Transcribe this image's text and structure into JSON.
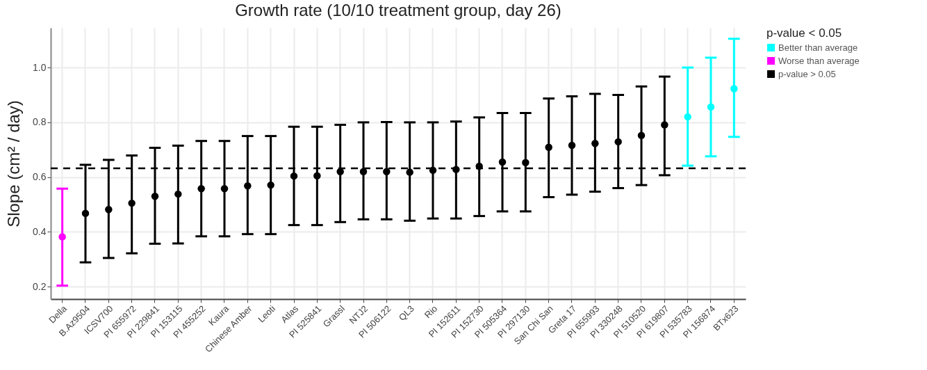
{
  "chart_data": {
    "type": "scatter",
    "title": "Growth rate (10/10 treatment group, day 26)",
    "ylabel": "Slope (cm² / day)",
    "legend_title": "p-value < 0.05",
    "categories": [
      "Della",
      "B.Az9504",
      "ICSV700",
      "PI 655972",
      "PI 229841",
      "PI 153115",
      "PI 455252",
      "Kaura",
      "Chinese Amber",
      "Leoti",
      "Atlas",
      "PI 525841",
      "Grassl",
      "NTJ2",
      "PI 506122",
      "QL3",
      "Rio",
      "PI 152611",
      "PI 152730",
      "PI 505364",
      "PI 297130",
      "San Chi San",
      "Greta 17",
      "PI 655993",
      "PI 330248",
      "PI 510520",
      "PI 619807",
      "PI 535783",
      "PI 156874",
      "BTx623"
    ],
    "series": [
      {
        "name": "Better than average",
        "color": "#00ffff",
        "values": [
          null,
          null,
          null,
          null,
          null,
          null,
          null,
          null,
          null,
          null,
          null,
          null,
          null,
          null,
          null,
          null,
          null,
          null,
          null,
          null,
          null,
          null,
          null,
          null,
          null,
          null,
          null,
          0.82,
          0.856,
          0.923
        ],
        "errors": [
          null,
          null,
          null,
          null,
          null,
          null,
          null,
          null,
          null,
          null,
          null,
          null,
          null,
          null,
          null,
          null,
          null,
          null,
          null,
          null,
          null,
          null,
          null,
          null,
          null,
          null,
          null,
          [
            0.642,
            1.0
          ],
          [
            0.676,
            1.036
          ],
          [
            0.747,
            1.105
          ]
        ]
      },
      {
        "name": "Worse than average",
        "color": "#ff00ff",
        "values": [
          0.382,
          null,
          null,
          null,
          null,
          null,
          null,
          null,
          null,
          null,
          null,
          null,
          null,
          null,
          null,
          null,
          null,
          null,
          null,
          null,
          null,
          null,
          null,
          null,
          null,
          null,
          null,
          null,
          null,
          null
        ],
        "errors": [
          [
            0.204,
            0.558
          ],
          null,
          null,
          null,
          null,
          null,
          null,
          null,
          null,
          null,
          null,
          null,
          null,
          null,
          null,
          null,
          null,
          null,
          null,
          null,
          null,
          null,
          null,
          null,
          null,
          null,
          null,
          null,
          null,
          null
        ]
      },
      {
        "name": "p-value > 0.05",
        "color": "#000000",
        "values": [
          null,
          0.468,
          0.482,
          0.505,
          0.53,
          0.538,
          0.558,
          0.558,
          0.568,
          0.571,
          0.604,
          0.605,
          0.62,
          0.62,
          0.62,
          0.618,
          0.625,
          0.628,
          0.64,
          0.655,
          0.653,
          0.709,
          0.716,
          0.723,
          0.729,
          0.752,
          0.791,
          null,
          null,
          null
        ],
        "errors": [
          null,
          [
            0.289,
            0.645
          ],
          [
            0.305,
            0.663
          ],
          [
            0.322,
            0.679
          ],
          [
            0.357,
            0.707
          ],
          [
            0.358,
            0.715
          ],
          [
            0.384,
            0.732
          ],
          [
            0.384,
            0.732
          ],
          [
            0.392,
            0.75
          ],
          [
            0.392,
            0.75
          ],
          [
            0.425,
            0.784
          ],
          [
            0.425,
            0.784
          ],
          [
            0.436,
            0.791
          ],
          [
            0.446,
            0.8
          ],
          [
            0.446,
            0.801
          ],
          [
            0.441,
            0.8
          ],
          [
            0.449,
            0.8
          ],
          [
            0.449,
            0.803
          ],
          [
            0.458,
            0.818
          ],
          [
            0.475,
            0.834
          ],
          [
            0.475,
            0.834
          ],
          [
            0.527,
            0.887
          ],
          [
            0.536,
            0.895
          ],
          [
            0.547,
            0.904
          ],
          [
            0.56,
            0.9
          ],
          [
            0.571,
            0.931
          ],
          [
            0.607,
            0.967
          ],
          null,
          null,
          null
        ]
      }
    ],
    "ylim": [
      0.155,
      1.145
    ],
    "yticks": [
      {
        "value": 0.2,
        "label": "0.2"
      },
      {
        "value": 0.4,
        "label": "0.4"
      },
      {
        "value": 0.6,
        "label": "0.6"
      },
      {
        "value": 0.8,
        "label": "0.8"
      },
      {
        "value": 1,
        "label": "1.0"
      }
    ],
    "ref_lines": [
      {
        "axis": "y",
        "value": 0.632,
        "color": "#000000",
        "line_style": "dashed"
      }
    ],
    "grid": true,
    "legend": "right",
    "marker": "circle"
  }
}
